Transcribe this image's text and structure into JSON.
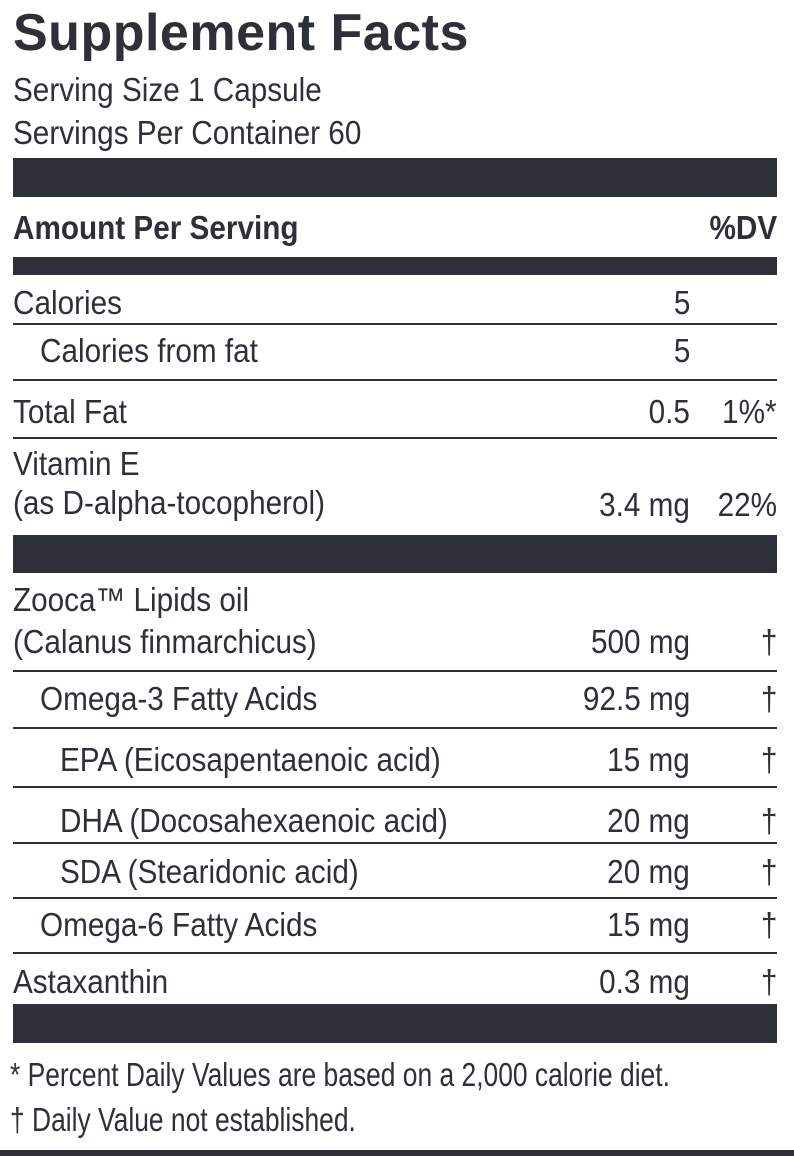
{
  "title": "Supplement Facts",
  "serving_size": "Serving Size 1 Capsule",
  "servings_per_container": "Servings Per Container 60",
  "header": {
    "amount_label": "Amount Per Serving",
    "dv_label": "%DV"
  },
  "rows": [
    {
      "name": "Calories",
      "amount": "5",
      "dv": ""
    },
    {
      "name": "Calories from fat",
      "amount": "5",
      "dv": ""
    },
    {
      "name": "Total Fat",
      "amount": "0.5",
      "dv": "1%*"
    },
    {
      "name": "Vitamin E",
      "name2": "(as D-alpha-tocopherol)",
      "amount": "3.4 mg",
      "dv": "22%"
    },
    {
      "name": "Zooca™ Lipids oil",
      "name2": "(Calanus finmarchicus)",
      "amount": "500 mg",
      "dv": "†"
    },
    {
      "name": "Omega-3 Fatty Acids",
      "amount": "92.5 mg",
      "dv": "†"
    },
    {
      "name": "EPA (Eicosapentaenoic acid)",
      "amount": "15 mg",
      "dv": "†"
    },
    {
      "name": "DHA (Docosahexaenoic acid)",
      "amount": "20 mg",
      "dv": "†"
    },
    {
      "name": "SDA (Stearidonic acid)",
      "amount": "20 mg",
      "dv": "†"
    },
    {
      "name": "Omega-6 Fatty Acids",
      "amount": "15 mg",
      "dv": "†"
    },
    {
      "name": "Astaxanthin",
      "amount": "0.3 mg",
      "dv": "†"
    }
  ],
  "footnotes": [
    "* Percent Daily Values are based on a 2,000 calorie diet.",
    "† Daily Value not established."
  ],
  "colors": {
    "ink": "#2d3038"
  }
}
